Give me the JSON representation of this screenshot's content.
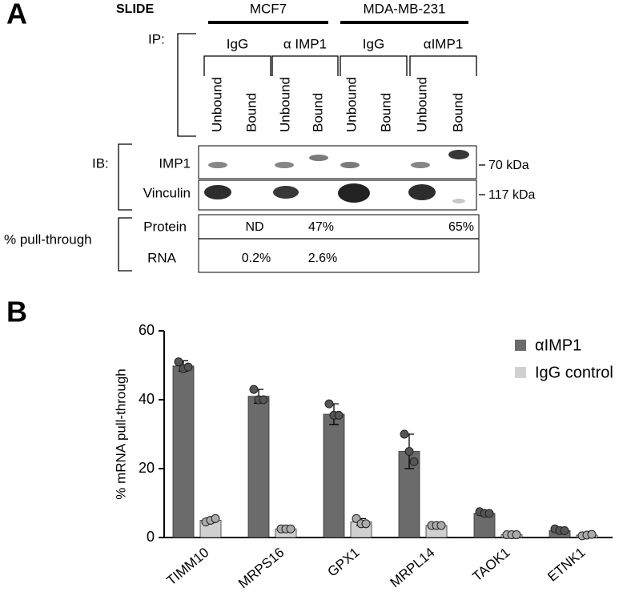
{
  "panel_a": {
    "label": "A",
    "slide_label": "SLIDE",
    "cell_lines": [
      "MCF7",
      "MDA-MB-231"
    ],
    "ip_label": "IP:",
    "ip_groups": [
      "IgG",
      "α IMP1",
      "IgG",
      "αIMP1"
    ],
    "lanes": [
      "Unbound",
      "Bound",
      "Unbound",
      "Bound",
      "Unbound",
      "Bound",
      "Unbound",
      "Bound"
    ],
    "ib_label": "IB:",
    "blots": [
      {
        "name": "IMP1",
        "marker": "70 kDa"
      },
      {
        "name": "Vinculin",
        "marker": "117 kDa"
      }
    ],
    "pull_label": "% pull-through",
    "rows": [
      {
        "name": "Protein",
        "cells": [
          null,
          "ND",
          null,
          "47%",
          null,
          null,
          null,
          "65%"
        ]
      },
      {
        "name": "RNA",
        "cells": [
          null,
          "0.2%",
          null,
          "2.6%",
          null,
          null,
          null,
          null
        ]
      }
    ]
  },
  "chart_data": {
    "type": "bar",
    "label": "B",
    "y_label": "% mRNA pull-through",
    "categories": [
      "TIMM10",
      "MRPS16",
      "GPX1",
      "MRPL14",
      "TAOK1",
      "ETNK1"
    ],
    "series": [
      {
        "name": "αIMP1",
        "color": "#6b6b6b",
        "values": [
          49.8,
          41,
          35.8,
          25,
          7,
          2
        ],
        "errors": [
          1.5,
          2,
          3,
          5,
          0.7,
          0.5
        ],
        "points": [
          [
            51,
            49,
            49.5
          ],
          [
            43,
            40,
            40
          ],
          [
            38.8,
            35.5,
            35.5
          ],
          [
            30,
            25,
            22
          ],
          [
            7.5,
            7,
            7
          ],
          [
            2.5,
            2,
            2
          ]
        ]
      },
      {
        "name": "IgG control",
        "color": "#d0d0d0",
        "values": [
          5,
          2.5,
          4.5,
          3.5,
          0.8,
          0.7
        ],
        "errors": [
          0.7,
          0.3,
          1,
          0.5,
          0.3,
          0.5
        ],
        "points": [
          [
            4.5,
            5,
            5.5
          ],
          [
            2.5,
            2.5,
            2.5
          ],
          [
            5.5,
            4,
            4
          ],
          [
            3.5,
            3.5,
            3.5
          ],
          [
            0.8,
            0.8,
            0.8
          ],
          [
            0.5,
            0.7,
            0.9
          ]
        ]
      }
    ],
    "ylim": [
      0,
      60
    ],
    "yticks": [
      0,
      20,
      40,
      60
    ],
    "grid": false,
    "legend": "top-right"
  }
}
